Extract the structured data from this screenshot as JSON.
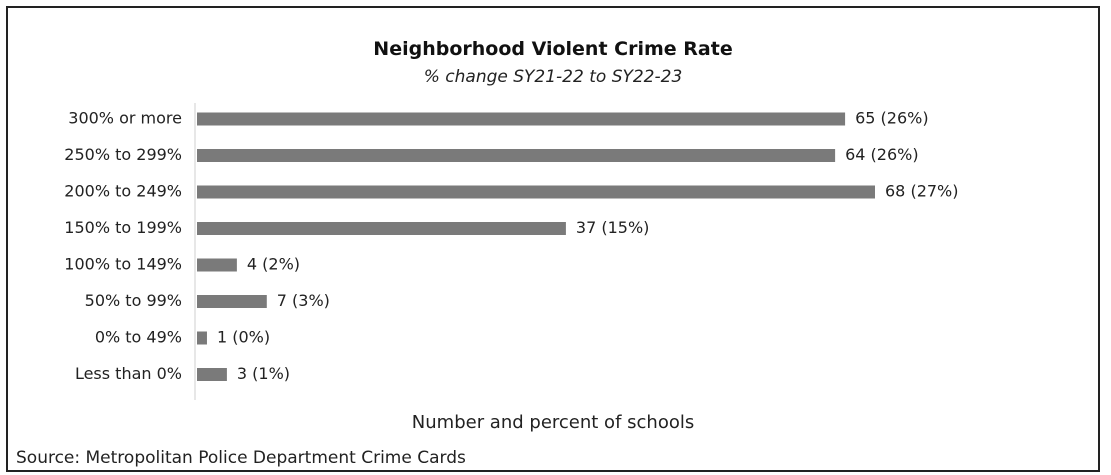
{
  "chart_data": {
    "type": "bar",
    "orientation": "horizontal",
    "title": "Neighborhood Violent Crime Rate",
    "subtitle": "% change SY21-22 to SY22-23",
    "xlabel": "Number and percent of schools",
    "ylabel": "",
    "categories": [
      "300% or more",
      "250% to 299%",
      "200% to 249%",
      "150% to 199%",
      "100% to 149%",
      "50% to 99%",
      "0% to 49%",
      "Less than 0%"
    ],
    "values": [
      65,
      64,
      68,
      37,
      4,
      7,
      1,
      3
    ],
    "data_labels": [
      "65 (26%)",
      "64 (26%)",
      "68 (27%)",
      "37 (15%)",
      "4 (2%)",
      "7 (3%)",
      "1 (0%)",
      "3 (1%)"
    ],
    "xlim": [
      0,
      68
    ],
    "grid": false,
    "legend": "none",
    "bar_color": "#7a7a7a",
    "source": "Source: Metropolitan Police Department Crime Cards"
  }
}
